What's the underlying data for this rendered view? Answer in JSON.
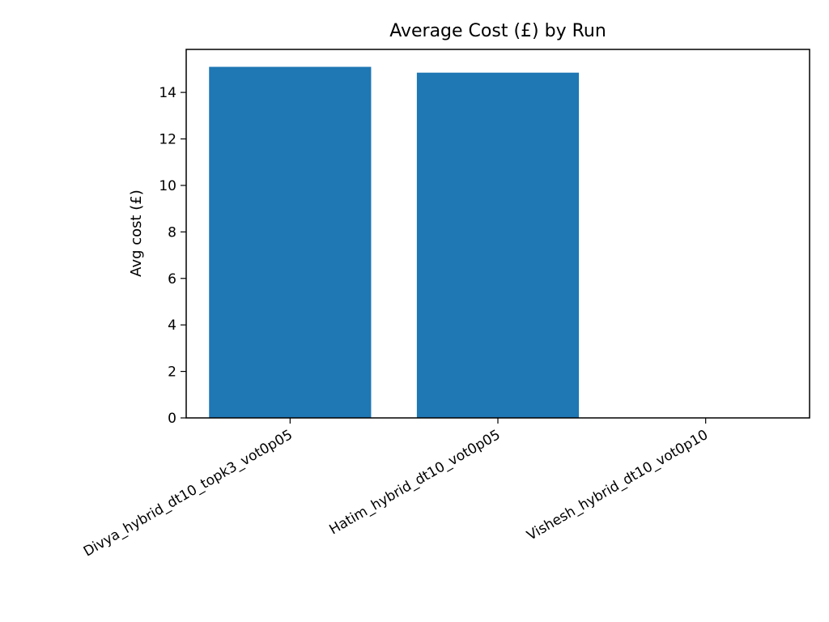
{
  "chart_data": {
    "type": "bar",
    "title": "Average Cost (£) by Run",
    "xlabel": "",
    "ylabel": "Avg cost (£)",
    "categories": [
      "Divya_hybrid_dt10_topk3_vot0p05",
      "Hatim_hybrid_dt10_vot0p05",
      "Vishesh_hybrid_dt10_vot0p10"
    ],
    "values": [
      15.1,
      14.85,
      0
    ],
    "ylim": [
      0,
      15.85
    ],
    "yticks": [
      0,
      2,
      4,
      6,
      8,
      10,
      12,
      14
    ],
    "grid": false,
    "bar_color": "#1f77b4"
  }
}
